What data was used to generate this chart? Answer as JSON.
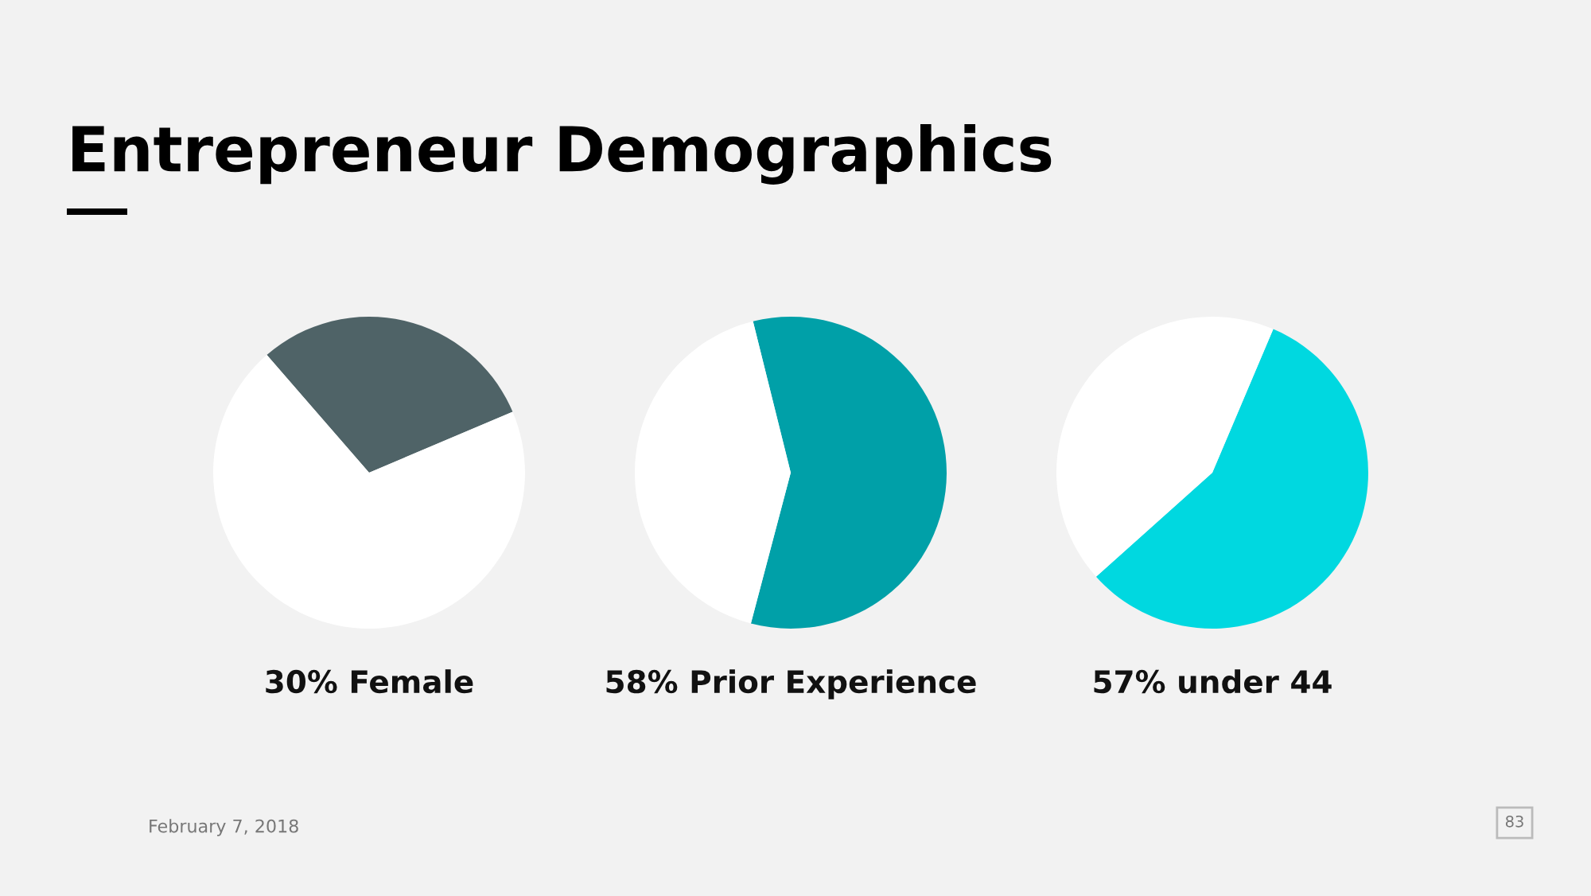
{
  "chart_data": [
    {
      "type": "other",
      "title": "Entrepreneur Demographics",
      "annotations": [
        "February 7, 2018",
        "83"
      ]
    },
    {
      "type": "pie",
      "title": "30% Female",
      "categories": [
        null,
        null
      ],
      "values": [
        30,
        70
      ],
      "colors": [
        "#4f6367",
        "#ffffff"
      ]
    },
    {
      "type": "pie",
      "title": "58% Prior Experience",
      "categories": [
        null,
        null
      ],
      "values": [
        58,
        42
      ],
      "colors": [
        "#00a0a8",
        "#ffffff"
      ]
    },
    {
      "type": "pie",
      "title": "57% under 44",
      "categories": [
        null,
        null
      ],
      "values": [
        57,
        43
      ],
      "colors": [
        "#00d8e0",
        "#ffffff"
      ]
    }
  ]
}
